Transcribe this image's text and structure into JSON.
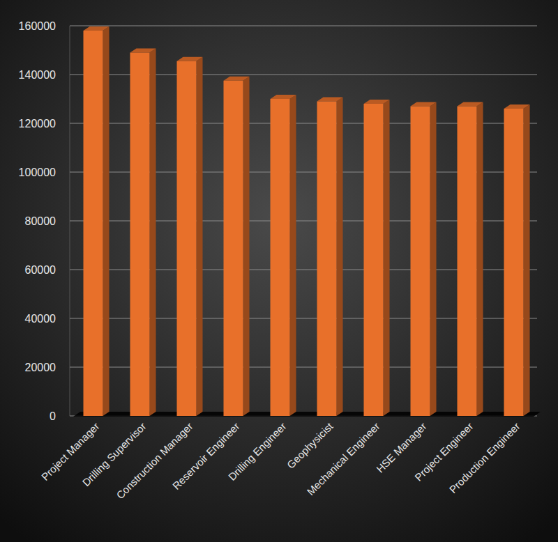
{
  "chart_data": {
    "type": "bar",
    "categories": [
      "Project Manager",
      "Drilling Supervisor",
      "Construction Manager",
      "Reservoir Engineer",
      "Drilling Engineer",
      "Geophysicist",
      "Mechanical Engineer",
      "HSE Manager",
      "Project Engineer",
      "Production Engineer"
    ],
    "values": [
      158000,
      149000,
      145500,
      137500,
      130000,
      129000,
      128000,
      127000,
      127000,
      126000
    ],
    "color": "#e8702a",
    "ylim": [
      0,
      160000
    ],
    "yticks": [
      0,
      20000,
      40000,
      60000,
      80000,
      100000,
      120000,
      140000,
      160000
    ],
    "grid": true
  }
}
